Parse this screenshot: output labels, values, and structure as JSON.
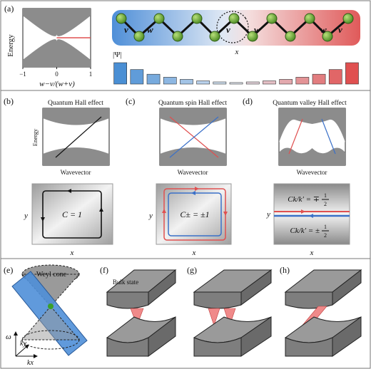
{
  "panel_labels": {
    "a": "(a)",
    "b": "(b)",
    "c": "(c)",
    "d": "(d)",
    "e": "(e)",
    "f": "(f)",
    "g": "(g)",
    "h": "(h)"
  },
  "panel_a": {
    "ylabel": "Energy",
    "xlabel": "w−v/(w+v)",
    "ticks": [
      "−1",
      "0",
      "1"
    ],
    "chain_v": "v",
    "chain_w": "w",
    "chain_x": "x",
    "psi_label": "|Ψ|",
    "bar_heights": [
      1.0,
      0.68,
      0.46,
      0.32,
      0.22,
      0.15,
      0.1,
      0.07,
      0.1,
      0.15,
      0.22,
      0.32,
      0.46,
      0.68,
      1.0
    ],
    "colors": {
      "blue": "#4a8fd4",
      "red": "#e05050"
    }
  },
  "panel_b": {
    "title": "Quantum Hall effect",
    "ylabel": "Energy",
    "xlabel": "Wavevector",
    "loop_ylabel": "y",
    "loop_xlabel": "x",
    "chern": "C = 1"
  },
  "panel_c": {
    "title": "Quantum spin Hall effect",
    "xlabel": "Wavevector",
    "loop_ylabel": "y",
    "loop_xlabel": "x",
    "chern": "C± = ±1"
  },
  "panel_d": {
    "title": "Quantum valley Hall effect",
    "xlabel": "Wavevector",
    "loop_ylabel": "y",
    "loop_xlabel": "x",
    "chern_top": "Ck/k′ = ∓",
    "chern_bottom": "Ck/k′ = ±",
    "frac_num": "1",
    "frac_den": "2"
  },
  "panel_e": {
    "cone_label": "Weyl cone",
    "axis_w": "ω",
    "axis_ky": "ky",
    "axis_kx": "kx"
  },
  "panel_f": {
    "bulk_label": "Bulk state"
  }
}
